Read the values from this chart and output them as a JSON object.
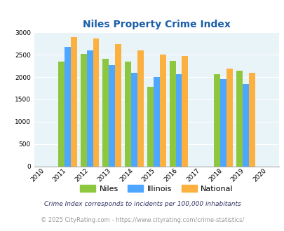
{
  "title": "Niles Property Crime Index",
  "data_years": [
    2011,
    2012,
    2013,
    2014,
    2015,
    2016,
    2018,
    2019
  ],
  "niles": [
    2350,
    2510,
    2400,
    2340,
    1780,
    2360,
    2060,
    2140
  ],
  "illinois": [
    2680,
    2590,
    2270,
    2090,
    2000,
    2060,
    1950,
    1850
  ],
  "national": [
    2900,
    2860,
    2740,
    2600,
    2500,
    2470,
    2190,
    2100
  ],
  "niles_color": "#8dc63f",
  "illinois_color": "#4da6ff",
  "national_color": "#fbb040",
  "bg_color": "#e8f4f8",
  "title_color": "#1a5fa8",
  "ylim": [
    0,
    3000
  ],
  "yticks": [
    0,
    500,
    1000,
    1500,
    2000,
    2500,
    3000
  ],
  "all_years": [
    2010,
    2011,
    2012,
    2013,
    2014,
    2015,
    2016,
    2017,
    2018,
    2019,
    2020
  ],
  "year_positions": {
    "2010": 0,
    "2011": 1,
    "2012": 2,
    "2013": 3,
    "2014": 4,
    "2015": 5,
    "2016": 6,
    "2017": 7,
    "2018": 8,
    "2019": 9,
    "2020": 10
  },
  "data_year_positions": {
    "2011": 1,
    "2012": 2,
    "2013": 3,
    "2014": 4,
    "2015": 5,
    "2016": 6,
    "2018": 8,
    "2019": 9
  },
  "footnote1": "Crime Index corresponds to incidents per 100,000 inhabitants",
  "footnote2": "© 2025 CityRating.com - https://www.cityrating.com/crime-statistics/",
  "footnote1_color": "#333366",
  "footnote2_color": "#999999",
  "bar_width": 0.28
}
